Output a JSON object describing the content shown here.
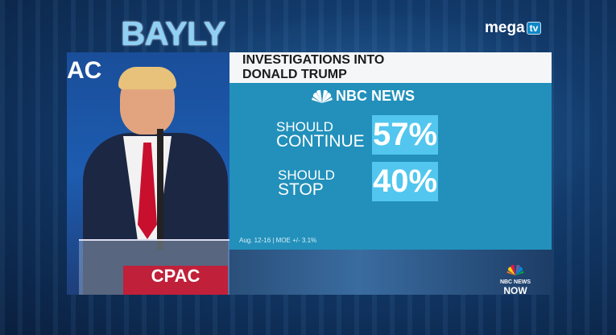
{
  "branding": {
    "show_logo": "BAYLY",
    "channel_logo": "mega",
    "channel_logo_badge": "tv",
    "bottom_logo_line1": "NBC NEWS",
    "bottom_logo_line2": "NOW"
  },
  "photo": {
    "backdrop_text": "AC",
    "podium_text": "CPAC"
  },
  "graphic": {
    "title_line1": "INVESTIGATIONS INTO",
    "title_line2": "DONALD TRUMP",
    "source": "NBC NEWS",
    "results": [
      {
        "label_line1": "SHOULD",
        "label_line2": "CONTINUE",
        "value": "57%"
      },
      {
        "label_line1": "SHOULD",
        "label_line2": "STOP",
        "value": "40%"
      }
    ],
    "footnote": "Aug. 12-16 | MOE +/- 3.1%"
  },
  "colors": {
    "panel": "#2290bb",
    "value_box": "#52c6ee",
    "title_band": "#f4f6f8"
  }
}
